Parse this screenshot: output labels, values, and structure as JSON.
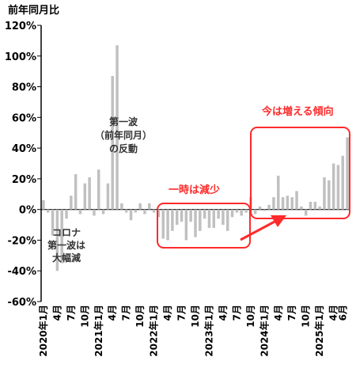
{
  "chart_data": {
    "type": "bar",
    "unit_label": "前年同月比",
    "y_ticks": [
      "120%",
      "100%",
      "80%",
      "60%",
      "40%",
      "20%",
      "0%",
      "-20%",
      "-40%",
      "-60%"
    ],
    "ylim": [
      -60,
      120
    ],
    "x_labels": [
      {
        "i": 0,
        "text": "2020年1月"
      },
      {
        "i": 3,
        "text": "4月"
      },
      {
        "i": 6,
        "text": "7月"
      },
      {
        "i": 9,
        "text": "10月"
      },
      {
        "i": 12,
        "text": "2021年1月"
      },
      {
        "i": 15,
        "text": "4月"
      },
      {
        "i": 18,
        "text": "7月"
      },
      {
        "i": 21,
        "text": "10月"
      },
      {
        "i": 24,
        "text": "2022年1月"
      },
      {
        "i": 27,
        "text": "4月"
      },
      {
        "i": 30,
        "text": "7月"
      },
      {
        "i": 33,
        "text": "10月"
      },
      {
        "i": 36,
        "text": "2023年1月"
      },
      {
        "i": 39,
        "text": "4月"
      },
      {
        "i": 42,
        "text": "7月"
      },
      {
        "i": 45,
        "text": "10月"
      },
      {
        "i": 48,
        "text": "2024年1月"
      },
      {
        "i": 51,
        "text": "4月"
      },
      {
        "i": 54,
        "text": "7月"
      },
      {
        "i": 57,
        "text": "10月"
      },
      {
        "i": 60,
        "text": "2025年1月"
      },
      {
        "i": 63,
        "text": "4月"
      },
      {
        "i": 65,
        "text": "6月"
      }
    ],
    "values": [
      6,
      -2,
      -17,
      -40,
      -35,
      -6,
      9,
      23,
      -3,
      17,
      21,
      -4,
      26,
      -3,
      17,
      87,
      107,
      4,
      -2,
      -7,
      -2,
      4,
      -3,
      4,
      -2,
      -5,
      -19,
      -20,
      -14,
      -10,
      -8,
      -20,
      -8,
      -18,
      -14,
      -6,
      -12,
      -12,
      -6,
      -10,
      -14,
      -5,
      -2,
      -4,
      -2,
      8,
      -3,
      2,
      -1,
      3,
      8,
      22,
      8,
      9,
      8,
      12,
      2,
      -4,
      5,
      5,
      2,
      21,
      19,
      30,
      29,
      35,
      47
    ],
    "bar_color": "#c0c0c0",
    "annotations": {
      "covid": [
        "コロナ",
        "第一波は",
        "大幅減"
      ],
      "rebound": [
        "第一波",
        "（前年同月）",
        "の反動"
      ],
      "decrease": "一時は減少",
      "increase": "今は増える傾向"
    },
    "highlight_color": "#ff2a2a"
  }
}
